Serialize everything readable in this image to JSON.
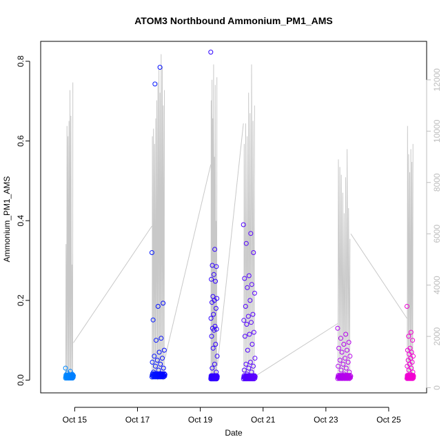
{
  "chart_data": {
    "type": "scatter",
    "title": "ATOM3 Northbound Ammonium_PM1_AMS",
    "xlabel": "Date",
    "ylabel": "Ammonium_PM1_AMS",
    "xlim": [
      "2016-10-13T22:00",
      "2016-10-26T05:00"
    ],
    "ylim": [
      -0.032,
      0.85
    ],
    "y2lim": [
      -200,
      13500
    ],
    "x_ticks": [
      {
        "date": "2016-10-15",
        "label": "Oct 15"
      },
      {
        "date": "2016-10-17",
        "label": "Oct 17"
      },
      {
        "date": "2016-10-19",
        "label": "Oct 19"
      },
      {
        "date": "2016-10-21",
        "label": "Oct 21"
      },
      {
        "date": "2016-10-23",
        "label": "Oct 23"
      },
      {
        "date": "2016-10-25",
        "label": "Oct 25"
      }
    ],
    "y_ticks": [
      "0.0",
      "0.2",
      "0.4",
      "0.6",
      "0.8"
    ],
    "y2_ticks": [
      "0",
      "2000",
      "4000",
      "6000",
      "8000",
      "10000",
      "12000"
    ],
    "grid": false,
    "point_color_scale": [
      "#00aaff",
      "#0000ff",
      "#8800ff",
      "#ff00cc"
    ],
    "series": [
      {
        "kind": "points",
        "clusters": [
          {
            "start": "2016-10-14T17:00",
            "end": "2016-10-14T23:00",
            "base": 0.005,
            "values": [
              0.03,
              0.022,
              0.018,
              0.015,
              0.012,
              0.01
            ]
          },
          {
            "start": "2016-10-17T11:00",
            "end": "2016-10-17T21:00",
            "base": 0.008,
            "values": [
              0.32,
              0.785,
              0.743,
              0.193,
              0.185,
              0.151,
              0.105,
              0.1,
              0.075,
              0.07,
              0.06,
              0.055,
              0.05,
              0.045,
              0.04,
              0.035,
              0.03,
              0.025,
              0.02
            ]
          },
          {
            "start": "2016-10-19T08:00",
            "end": "2016-10-19T13:00",
            "base": 0.003,
            "values": [
              0.823,
              0.328,
              0.288,
              0.285,
              0.265,
              0.253,
              0.248,
              0.21,
              0.205,
              0.2,
              0.195,
              0.18,
              0.165,
              0.155,
              0.135,
              0.13,
              0.128,
              0.125,
              0.11,
              0.09,
              0.08,
              0.06,
              0.04,
              0.03,
              0.02
            ]
          },
          {
            "start": "2016-10-20T09:00",
            "end": "2016-10-20T18:00",
            "base": 0.003,
            "values": [
              0.39,
              0.368,
              0.343,
              0.32,
              0.262,
              0.255,
              0.24,
              0.232,
              0.218,
              0.2,
              0.185,
              0.165,
              0.16,
              0.15,
              0.145,
              0.14,
              0.12,
              0.115,
              0.11,
              0.09,
              0.075,
              0.055,
              0.045,
              0.04,
              0.035,
              0.03,
              0.025,
              0.02,
              0.015,
              0.01
            ]
          },
          {
            "start": "2016-10-23T09:00",
            "end": "2016-10-23T19:00",
            "base": 0.004,
            "values": [
              0.13,
              0.115,
              0.105,
              0.095,
              0.09,
              0.08,
              0.075,
              0.07,
              0.06,
              0.055,
              0.05,
              0.045,
              0.04,
              0.035,
              0.03,
              0.025,
              0.02,
              0.015,
              0.01
            ]
          },
          {
            "start": "2016-10-25T14:00",
            "end": "2016-10-25T19:00",
            "base": 0.004,
            "values": [
              0.185,
              0.12,
              0.11,
              0.1,
              0.08,
              0.075,
              0.07,
              0.065,
              0.06,
              0.055,
              0.05,
              0.045,
              0.04,
              0.035,
              0.03,
              0.025,
              0.02,
              0.015,
              0.01
            ]
          }
        ]
      },
      {
        "kind": "line",
        "axis": "right",
        "color": "#c8c8c8",
        "segments": [
          {
            "start": "2016-10-14T17:00",
            "end": "2016-10-14T23:00",
            "peaks": [
              5600,
              10200,
              9800,
              10400,
              11600,
              10600,
              4800,
              11900
            ]
          },
          {
            "start": "2016-10-17T11:00",
            "end": "2016-10-17T21:00",
            "peaks": [
              9800,
              10100,
              9500,
              10500,
              11200,
              11900,
              12400,
              11500,
              13000,
              12500,
              11000,
              11600
            ]
          },
          {
            "start": "2016-10-19T08:00",
            "end": "2016-10-19T13:00",
            "peaks": [
              11200,
              12000,
              10500,
              12600,
              9000,
              11800,
              6500,
              12100
            ]
          },
          {
            "start": "2016-10-20T09:00",
            "end": "2016-10-20T18:00",
            "peaks": [
              9500,
              10300,
              9800,
              11500,
              10700,
              12600,
              10400,
              11000
            ]
          },
          {
            "start": "2016-10-23T09:00",
            "end": "2016-10-23T19:00",
            "peaks": [
              8900,
              8600,
              8300,
              7600,
              6800,
              8200,
              9300,
              7000,
              5800
            ]
          },
          {
            "start": "2016-10-25T14:00",
            "end": "2016-10-25T19:00",
            "peaks": [
              10200,
              9100,
              8400,
              9300,
              8800,
              9500
            ]
          }
        ],
        "connectors": [
          {
            "from_date": "2016-10-14T23:00",
            "from": 1750,
            "to_date": "2016-10-17T11:00",
            "to": 6300
          },
          {
            "from_date": "2016-10-17T21:00",
            "from": 1150,
            "to_date": "2016-10-19T08:00",
            "to": 8700
          },
          {
            "from_date": "2016-10-19T13:00",
            "from": 850,
            "to_date": "2016-10-20T09:00",
            "to": 10300
          },
          {
            "from_date": "2016-10-20T18:00",
            "from": 450,
            "to_date": "2016-10-23T09:00",
            "to": 2500
          },
          {
            "from_date": "2016-10-23T19:00",
            "from": 6000,
            "to_date": "2016-10-25T14:00",
            "to": 2700
          }
        ]
      }
    ]
  }
}
